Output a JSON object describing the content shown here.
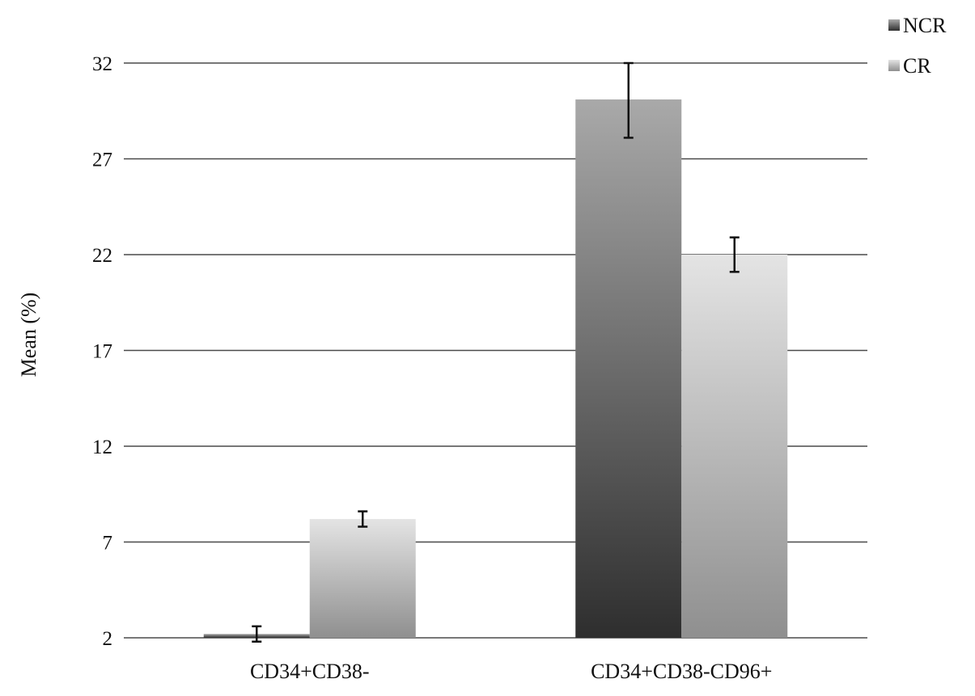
{
  "chart_data": {
    "type": "bar",
    "title": "",
    "xlabel": "",
    "ylabel": "Mean (%)",
    "categories": [
      "CD34+CD38-",
      "CD34+CD38-CD96+"
    ],
    "series": [
      {
        "name": "NCR",
        "values": [
          2.2,
          30.1
        ],
        "error": [
          0.4,
          2.0
        ],
        "color_top": "#a9a9a9",
        "color_bottom": "#2e2e2e"
      },
      {
        "name": "CR",
        "values": [
          8.2,
          22.0
        ],
        "error": [
          0.4,
          0.9
        ],
        "color_top": "#e4e4e4",
        "color_bottom": "#8f8f8f"
      }
    ],
    "ylim": [
      2,
      32
    ],
    "yticks": [
      "2",
      "7",
      "12",
      "17",
      "22",
      "27",
      "32"
    ],
    "grid": true,
    "legend": "top-right"
  }
}
